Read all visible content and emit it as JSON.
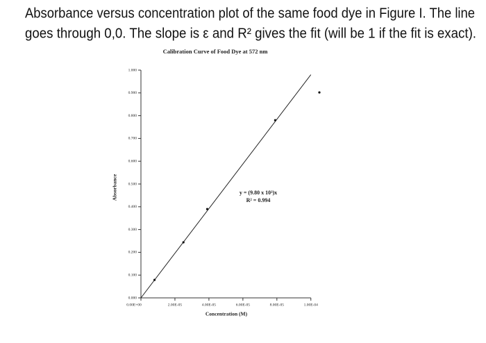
{
  "caption": {
    "lines": [
      "Absorbance versus concentration plot of the same food dye in Figure I. The line",
      "goes through 0,0. The slope is ε and R² gives the fit (will be 1 if the fit is exact)."
    ]
  },
  "chart_data": {
    "type": "scatter",
    "title": "Calibration Curve of Food Dye at 572 nm",
    "x_label": "Concentration (M)",
    "y_label": "Absorbance",
    "x": [
      8e-06,
      2.5e-05,
      3.9e-05,
      7.9e-05,
      0.000105
    ],
    "values": [
      0.079,
      0.244,
      0.39,
      0.78,
      0.902
    ],
    "color": "#111111",
    "trendline": {
      "slope": 9800,
      "intercept": 0,
      "color": "#222222"
    },
    "annotations": [
      "y = (9.80 x 10³)x",
      "R² = 0.994"
    ],
    "xlim": [
      0,
      0.000105
    ],
    "ylim": [
      0,
      1
    ],
    "xticks": [
      {
        "value": 0,
        "label": "0.00E+00"
      },
      {
        "value": 2e-05,
        "label": "2.00E-05"
      },
      {
        "value": 4e-05,
        "label": "4.00E-05"
      },
      {
        "value": 6e-05,
        "label": "6.00E-05"
      },
      {
        "value": 8e-05,
        "label": "8.00E-05"
      },
      {
        "value": 0.0001,
        "label": "1.00E-04"
      }
    ],
    "yticks": [
      {
        "value": 0,
        "label": "0.000"
      },
      {
        "value": 0.1,
        "label": "0.100"
      },
      {
        "value": 0.2,
        "label": "0.200"
      },
      {
        "value": 0.3,
        "label": "0.300"
      },
      {
        "value": 0.4,
        "label": "0.400"
      },
      {
        "value": 0.5,
        "label": "0.500"
      },
      {
        "value": 0.6,
        "label": "0.600"
      },
      {
        "value": 0.7,
        "label": "0.700"
      },
      {
        "value": 0.8,
        "label": "0.800"
      },
      {
        "value": 0.9,
        "label": "0.900"
      },
      {
        "value": 1,
        "label": "1.000"
      }
    ],
    "grid": false
  }
}
